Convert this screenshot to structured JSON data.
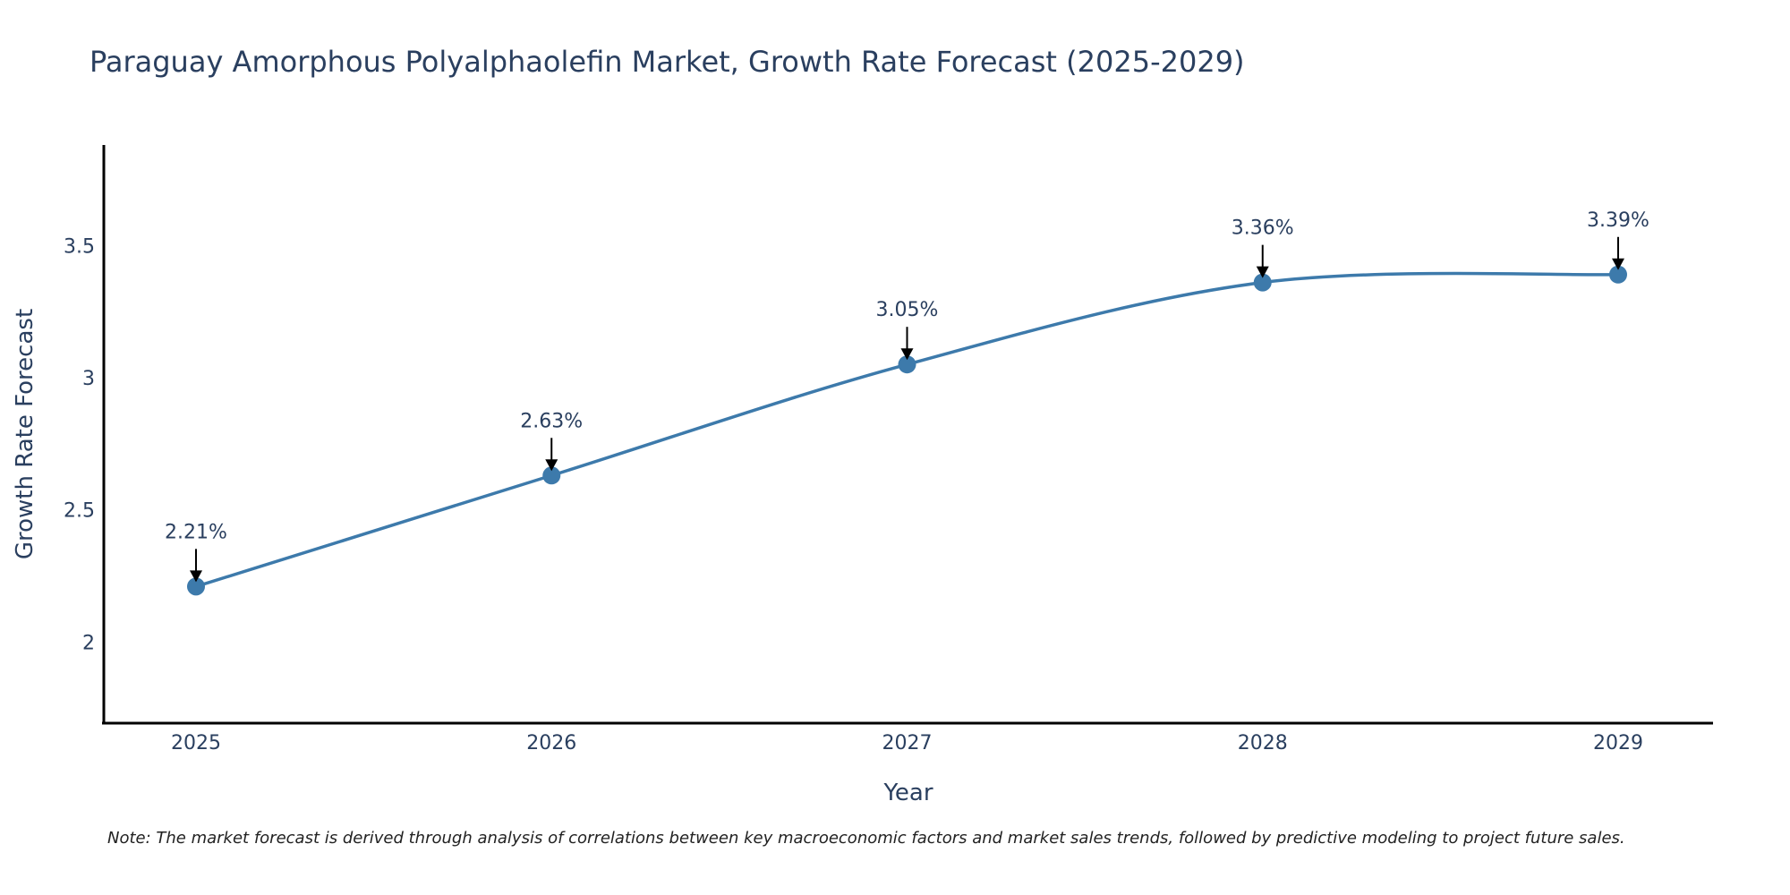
{
  "chart_data": {
    "type": "line",
    "title": "Paraguay Amorphous Polyalphaolefin Market, Growth Rate Forecast (2025-2029)",
    "xlabel": "Year",
    "ylabel": "Growth Rate Forecast",
    "categories": [
      "2025",
      "2026",
      "2027",
      "2028",
      "2029"
    ],
    "series": [
      {
        "name": "Growth Rate Forecast",
        "values": [
          2.21,
          2.63,
          3.05,
          3.36,
          3.39
        ],
        "labels": [
          "2.21%",
          "2.63%",
          "3.05%",
          "3.36%",
          "3.39%"
        ]
      }
    ],
    "ylim": [
      1.7,
      3.88
    ],
    "yticks": [
      2,
      2.5,
      3,
      3.5
    ],
    "ytick_labels": [
      "2",
      "2.5",
      "3",
      "3.5"
    ],
    "grid": false,
    "line_color": "#3d7aab",
    "marker_color": "#3d7aab",
    "note": "Note: The market forecast is derived through analysis of correlations between key macroeconomic factors and market sales trends, followed by predictive modeling to project future sales."
  }
}
